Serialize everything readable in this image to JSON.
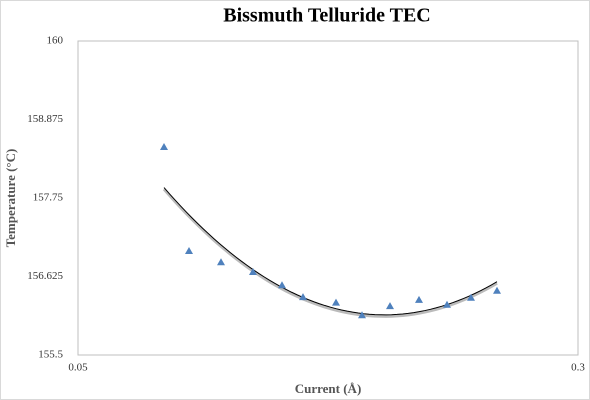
{
  "chart_data": {
    "type": "scatter",
    "title": "Bissmuth Telluride TEC",
    "x_label": "Current (Å)",
    "y_label": "Temperature (°C)",
    "series": [
      {
        "name": "Bissmuth Telluride TEC",
        "color": "#4f81bd",
        "marker": "triangle",
        "x": [
          0.093,
          0.1055,
          0.1215,
          0.1375,
          0.152,
          0.1625,
          0.179,
          0.192,
          0.206,
          0.2205,
          0.2345,
          0.2465,
          0.2595
        ],
        "values": [
          158.48,
          156.99,
          156.83,
          156.69,
          156.5,
          156.33,
          156.25,
          156.07,
          156.2,
          156.29,
          156.22,
          156.32,
          156.42
        ]
      }
    ],
    "trendline": "polynomial-2",
    "trendline_color": "#000000",
    "xlim": [
      0.05,
      0.3
    ],
    "xticks": [
      0.05,
      0.3
    ],
    "ylim": [
      155.5,
      160
    ],
    "yticks": [
      155.5,
      156.625,
      157.75,
      158.875,
      160
    ],
    "grid": false
  }
}
